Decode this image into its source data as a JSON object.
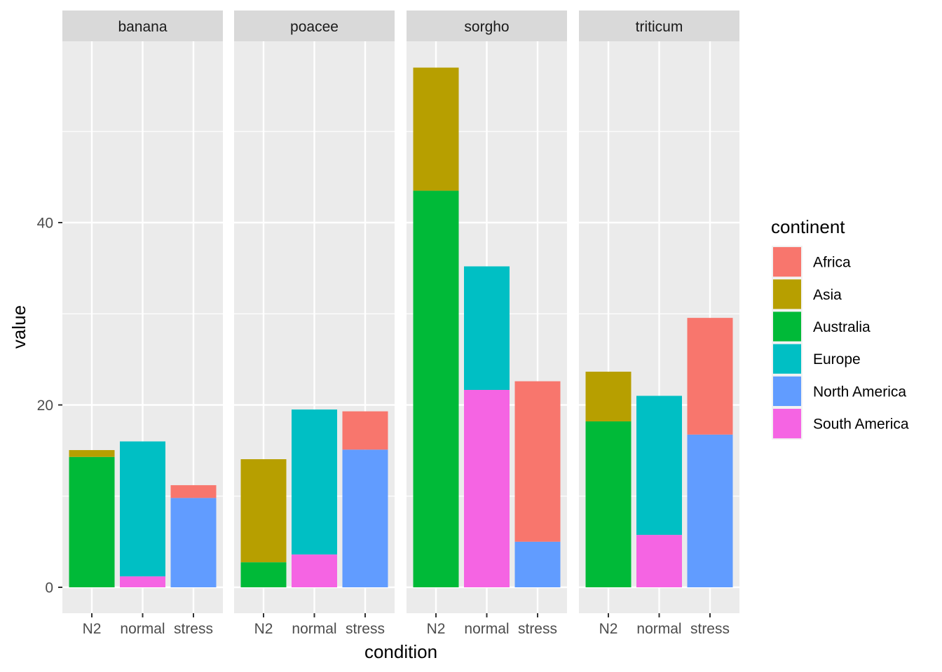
{
  "chart_data": {
    "type": "bar",
    "stacked": true,
    "facet_by": "species",
    "panels": [
      "banana",
      "poacee",
      "sorgho",
      "triticum"
    ],
    "categories": [
      "N2",
      "normal",
      "stress"
    ],
    "xlabel": "condition",
    "ylabel": "value",
    "ylim": [
      -2.8,
      59.8
    ],
    "yticks": [
      0,
      20,
      40
    ],
    "ytick_labels": [
      "0",
      "20",
      "40"
    ],
    "y_minor_gridlines": [
      10,
      30,
      50
    ],
    "grid": true,
    "legend": {
      "title": "continent",
      "position": "right",
      "entries": [
        {
          "name": "Africa",
          "color": "#F8766D"
        },
        {
          "name": "Asia",
          "color": "#B79F00"
        },
        {
          "name": "Australia",
          "color": "#00BA38"
        },
        {
          "name": "Europe",
          "color": "#00BFC4"
        },
        {
          "name": "North America",
          "color": "#619CFF"
        },
        {
          "name": "South America",
          "color": "#F564E3"
        }
      ]
    },
    "stack_order_bottom_to_top": [
      "South America",
      "North America",
      "Europe",
      "Australia",
      "Asia",
      "Africa"
    ],
    "data": {
      "banana": {
        "N2": {
          "Australia": 14.3,
          "Asia": 0.75
        },
        "normal": {
          "South America": 1.2,
          "Europe": 14.8
        },
        "stress": {
          "North America": 9.8,
          "Africa": 1.4
        }
      },
      "poacee": {
        "N2": {
          "Australia": 2.75,
          "Asia": 11.3
        },
        "normal": {
          "South America": 3.6,
          "Europe": 15.9
        },
        "stress": {
          "North America": 15.1,
          "Africa": 4.2
        }
      },
      "sorgho": {
        "N2": {
          "Australia": 43.5,
          "Asia": 13.5
        },
        "normal": {
          "South America": 21.65,
          "Europe": 13.55
        },
        "stress": {
          "North America": 5.0,
          "Africa": 17.6
        }
      },
      "triticum": {
        "N2": {
          "Australia": 18.2,
          "Asia": 5.45
        },
        "normal": {
          "South America": 5.75,
          "Europe": 15.25
        },
        "stress": {
          "North America": 16.75,
          "Africa": 12.8
        }
      }
    }
  },
  "colors": {
    "panel_background": "#EBEBEB",
    "strip_background": "#D9D9D9",
    "gridline": "#FFFFFF"
  }
}
